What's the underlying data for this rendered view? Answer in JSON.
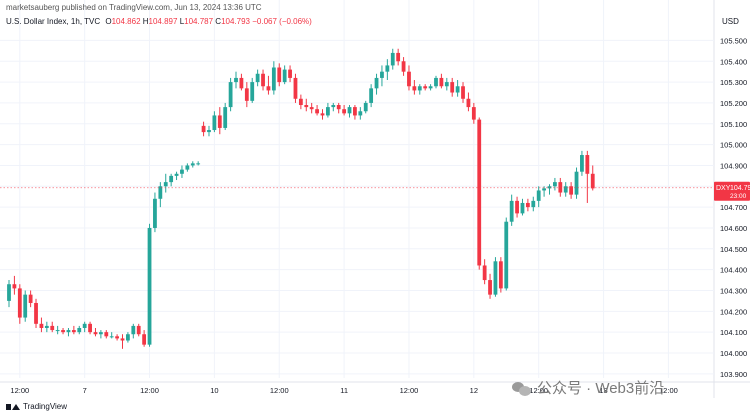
{
  "header": {
    "caption": "marketsauberg published on TradingView.com, Jun 13, 2024 13:36 UTC",
    "symbol": "U.S. Dollar Index, 1h, TVC",
    "o_label": "O",
    "o_value": "104.862",
    "h_label": "H",
    "h_value": "104.897",
    "l_label": "L",
    "l_value": "104.787",
    "c_label": "C",
    "c_value": "104.793",
    "change": "−0.067 (−0.06%)",
    "currency": "USD"
  },
  "price_tag": {
    "symbol": "DXY",
    "value": "104.793",
    "countdown": "23:00"
  },
  "footer": {
    "brand": "TradingView",
    "watermark": "公众号 · Web3前沿"
  },
  "colors": {
    "up": "#26a69a",
    "down": "#f23645",
    "grid": "#f0f3fa",
    "axis_text": "#131722"
  },
  "chart_data": {
    "type": "candlestick",
    "ylim": [
      103.88,
      105.55
    ],
    "y_ticks": [
      103.9,
      104.0,
      104.1,
      104.2,
      104.3,
      104.4,
      104.5,
      104.6,
      104.7,
      104.8,
      104.9,
      105.0,
      105.1,
      105.2,
      105.3,
      105.4,
      105.5
    ],
    "y_tick_labels": [
      "103.900",
      "104.000",
      "104.100",
      "104.200",
      "104.300",
      "104.400",
      "104.500",
      "104.600",
      "104.700",
      "104.800",
      "104.900",
      "105.000",
      "105.100",
      "105.200",
      "105.300",
      "105.400",
      "105.500"
    ],
    "x_ticks": [
      {
        "label": "12:00",
        "index": 2
      },
      {
        "label": "7",
        "index": 14
      },
      {
        "label": "12:00",
        "index": 26
      },
      {
        "label": "10",
        "index": 38
      },
      {
        "label": "12:00",
        "index": 50
      },
      {
        "label": "11",
        "index": 62
      },
      {
        "label": "12:00",
        "index": 74
      },
      {
        "label": "12",
        "index": 86
      },
      {
        "label": "12:00",
        "index": 98
      },
      {
        "label": "13",
        "index": 110
      },
      {
        "label": "12:00",
        "index": 122
      }
    ],
    "last_price": 104.793,
    "candles": [
      [
        104.25,
        104.35,
        104.22,
        104.33
      ],
      [
        104.33,
        104.37,
        104.28,
        104.31
      ],
      [
        104.31,
        104.33,
        104.14,
        104.17
      ],
      [
        104.17,
        104.3,
        104.15,
        104.28
      ],
      [
        104.28,
        104.3,
        104.22,
        104.24
      ],
      [
        104.24,
        104.26,
        104.12,
        104.14
      ],
      [
        104.14,
        104.17,
        104.1,
        104.12
      ],
      [
        104.12,
        104.15,
        104.1,
        104.13
      ],
      [
        104.13,
        104.15,
        104.1,
        104.11
      ],
      [
        104.11,
        104.13,
        104.09,
        104.11
      ],
      [
        104.11,
        104.12,
        104.09,
        104.1
      ],
      [
        104.1,
        104.12,
        104.08,
        104.11
      ],
      [
        104.11,
        104.13,
        104.09,
        104.1
      ],
      [
        104.1,
        104.13,
        104.09,
        104.12
      ],
      [
        104.12,
        104.15,
        104.1,
        104.14
      ],
      [
        104.14,
        104.15,
        104.09,
        104.1
      ],
      [
        104.1,
        104.12,
        104.08,
        104.09
      ],
      [
        104.09,
        104.11,
        104.07,
        104.1
      ],
      [
        104.1,
        104.11,
        104.07,
        104.08
      ],
      [
        104.08,
        104.1,
        104.07,
        104.08
      ],
      [
        104.08,
        104.09,
        104.06,
        104.07
      ],
      [
        104.07,
        104.09,
        104.02,
        104.06
      ],
      [
        104.06,
        104.1,
        104.05,
        104.09
      ],
      [
        104.09,
        104.14,
        104.07,
        104.13
      ],
      [
        104.13,
        104.14,
        104.08,
        104.09
      ],
      [
        104.09,
        104.11,
        104.03,
        104.04
      ],
      [
        104.04,
        104.62,
        104.03,
        104.6
      ],
      [
        104.6,
        104.77,
        104.58,
        104.74
      ],
      [
        104.74,
        104.82,
        104.7,
        104.8
      ],
      [
        104.8,
        104.86,
        104.77,
        104.82
      ],
      [
        104.82,
        104.86,
        104.8,
        104.85
      ],
      [
        104.85,
        104.87,
        104.83,
        104.86
      ],
      [
        104.86,
        104.9,
        104.84,
        104.88
      ],
      [
        104.88,
        104.91,
        104.87,
        104.9
      ],
      [
        104.9,
        104.92,
        104.89,
        104.91
      ],
      [
        104.91,
        104.92,
        104.9,
        104.91
      ],
      [
        105.09,
        105.11,
        105.04,
        105.06
      ],
      [
        105.06,
        105.09,
        105.04,
        105.07
      ],
      [
        105.07,
        105.16,
        105.06,
        105.14
      ],
      [
        105.14,
        105.18,
        105.05,
        105.08
      ],
      [
        105.08,
        105.2,
        105.07,
        105.18
      ],
      [
        105.18,
        105.32,
        105.16,
        105.3
      ],
      [
        105.3,
        105.35,
        105.27,
        105.32
      ],
      [
        105.32,
        105.34,
        105.26,
        105.27
      ],
      [
        105.27,
        105.3,
        105.18,
        105.21
      ],
      [
        105.21,
        105.32,
        105.2,
        105.3
      ],
      [
        105.3,
        105.36,
        105.28,
        105.34
      ],
      [
        105.34,
        105.36,
        105.26,
        105.28
      ],
      [
        105.28,
        105.33,
        105.24,
        105.26
      ],
      [
        105.26,
        105.4,
        105.24,
        105.37
      ],
      [
        105.37,
        105.39,
        105.28,
        105.3
      ],
      [
        105.3,
        105.38,
        105.29,
        105.36
      ],
      [
        105.36,
        105.38,
        105.3,
        105.32
      ],
      [
        105.32,
        105.34,
        105.2,
        105.22
      ],
      [
        105.22,
        105.24,
        105.17,
        105.19
      ],
      [
        105.19,
        105.22,
        105.16,
        105.18
      ],
      [
        105.18,
        105.2,
        105.15,
        105.17
      ],
      [
        105.17,
        105.19,
        105.14,
        105.15
      ],
      [
        105.15,
        105.17,
        105.12,
        105.14
      ],
      [
        105.14,
        105.2,
        105.13,
        105.18
      ],
      [
        105.18,
        105.2,
        105.16,
        105.19
      ],
      [
        105.19,
        105.2,
        105.15,
        105.17
      ],
      [
        105.17,
        105.19,
        105.14,
        105.15
      ],
      [
        105.15,
        105.19,
        105.13,
        105.18
      ],
      [
        105.18,
        105.19,
        105.12,
        105.14
      ],
      [
        105.14,
        105.18,
        105.12,
        105.16
      ],
      [
        105.16,
        105.21,
        105.15,
        105.2
      ],
      [
        105.2,
        105.29,
        105.18,
        105.27
      ],
      [
        105.27,
        105.34,
        105.24,
        105.32
      ],
      [
        105.32,
        105.38,
        105.28,
        105.35
      ],
      [
        105.35,
        105.41,
        105.31,
        105.38
      ],
      [
        105.38,
        105.46,
        105.36,
        105.44
      ],
      [
        105.44,
        105.46,
        105.38,
        105.4
      ],
      [
        105.4,
        105.42,
        105.33,
        105.35
      ],
      [
        105.35,
        105.38,
        105.26,
        105.28
      ],
      [
        105.28,
        105.31,
        105.24,
        105.26
      ],
      [
        105.26,
        105.29,
        105.24,
        105.28
      ],
      [
        105.28,
        105.29,
        105.26,
        105.27
      ],
      [
        105.27,
        105.29,
        105.26,
        105.28
      ],
      [
        105.28,
        105.33,
        105.27,
        105.32
      ],
      [
        105.32,
        105.34,
        105.27,
        105.28
      ],
      [
        105.28,
        105.32,
        105.26,
        105.3
      ],
      [
        105.3,
        105.32,
        105.23,
        105.25
      ],
      [
        105.25,
        105.31,
        105.23,
        105.28
      ],
      [
        105.28,
        105.3,
        105.2,
        105.22
      ],
      [
        105.22,
        105.25,
        105.16,
        105.18
      ],
      [
        105.18,
        105.2,
        105.1,
        105.12
      ],
      [
        105.12,
        105.13,
        104.4,
        104.42
      ],
      [
        104.42,
        104.45,
        104.33,
        104.35
      ],
      [
        104.35,
        104.38,
        104.26,
        104.28
      ],
      [
        104.28,
        104.46,
        104.27,
        104.44
      ],
      [
        104.44,
        104.46,
        104.29,
        104.31
      ],
      [
        104.31,
        104.65,
        104.3,
        104.63
      ],
      [
        104.63,
        104.76,
        104.61,
        104.73
      ],
      [
        104.73,
        104.75,
        104.65,
        104.67
      ],
      [
        104.67,
        104.74,
        104.66,
        104.72
      ],
      [
        104.72,
        104.74,
        104.68,
        104.7
      ],
      [
        104.7,
        104.75,
        104.68,
        104.73
      ],
      [
        104.73,
        104.8,
        104.7,
        104.78
      ],
      [
        104.78,
        104.8,
        104.75,
        104.79
      ],
      [
        104.79,
        104.81,
        104.76,
        104.8
      ],
      [
        104.8,
        104.84,
        104.78,
        104.82
      ],
      [
        104.82,
        104.84,
        104.75,
        104.77
      ],
      [
        104.77,
        104.82,
        104.75,
        104.8
      ],
      [
        104.8,
        104.82,
        104.74,
        104.76
      ],
      [
        104.76,
        104.89,
        104.74,
        104.87
      ],
      [
        104.87,
        104.97,
        104.85,
        104.95
      ],
      [
        104.95,
        104.97,
        104.72,
        104.86
      ],
      [
        104.86,
        104.9,
        104.78,
        104.79
      ]
    ]
  }
}
